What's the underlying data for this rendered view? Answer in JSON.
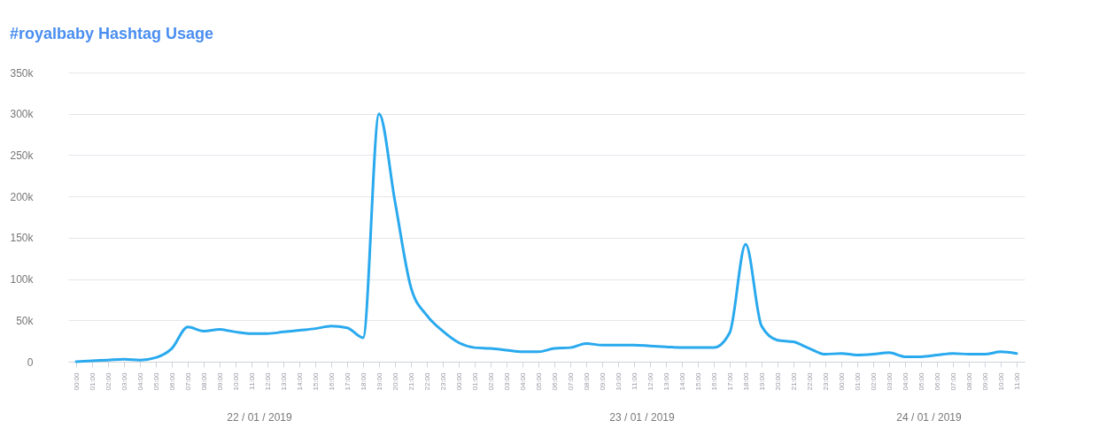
{
  "chart_data": {
    "type": "line",
    "title": "#royalbaby Hashtag Usage",
    "x": [
      "2019-01-22T00:00",
      "2019-01-22T01:00",
      "2019-01-22T02:00",
      "2019-01-22T03:00",
      "2019-01-22T04:00",
      "2019-01-22T05:00",
      "2019-01-22T06:00",
      "2019-01-22T07:00",
      "2019-01-22T08:00",
      "2019-01-22T09:00",
      "2019-01-22T10:00",
      "2019-01-22T11:00",
      "2019-01-22T12:00",
      "2019-01-22T13:00",
      "2019-01-22T14:00",
      "2019-01-22T15:00",
      "2019-01-22T16:00",
      "2019-01-22T17:00",
      "2019-01-22T18:00",
      "2019-01-22T19:00",
      "2019-01-22T20:00",
      "2019-01-22T21:00",
      "2019-01-22T22:00",
      "2019-01-22T23:00",
      "2019-01-23T00:00",
      "2019-01-23T01:00",
      "2019-01-23T02:00",
      "2019-01-23T03:00",
      "2019-01-23T04:00",
      "2019-01-23T05:00",
      "2019-01-23T06:00",
      "2019-01-23T07:00",
      "2019-01-23T08:00",
      "2019-01-23T09:00",
      "2019-01-23T10:00",
      "2019-01-23T11:00",
      "2019-01-23T12:00",
      "2019-01-23T13:00",
      "2019-01-23T14:00",
      "2019-01-23T15:00",
      "2019-01-23T16:00",
      "2019-01-23T17:00",
      "2019-01-23T18:00",
      "2019-01-23T19:00",
      "2019-01-23T20:00",
      "2019-01-23T21:00",
      "2019-01-23T22:00",
      "2019-01-23T23:00",
      "2019-01-24T00:00",
      "2019-01-24T01:00",
      "2019-01-24T02:00",
      "2019-01-24T03:00",
      "2019-01-24T04:00",
      "2019-01-24T05:00",
      "2019-01-24T06:00",
      "2019-01-24T07:00",
      "2019-01-24T08:00",
      "2019-01-24T09:00",
      "2019-01-24T10:00",
      "2019-01-24T11:00"
    ],
    "series": [
      {
        "color": "#29a9ee",
        "values": [
          0,
          1000,
          2000,
          3000,
          2000,
          5000,
          16000,
          42000,
          37000,
          39000,
          36000,
          34000,
          34000,
          36000,
          38000,
          40000,
          43000,
          41000,
          29000,
          300000,
          194000,
          90000,
          56000,
          37000,
          23000,
          17000,
          16000,
          14000,
          12000,
          12000,
          16000,
          17000,
          22000,
          20000,
          20000,
          20000,
          19000,
          18000,
          17000,
          17000,
          17000,
          35000,
          142000,
          43000,
          26000,
          24000,
          16000,
          9000,
          10000,
          8000,
          9000,
          11000,
          6000,
          6000,
          8000,
          10000,
          9000,
          9000,
          12000,
          10000
        ]
      }
    ],
    "xlim": [
      "2019-01-21T23:30",
      "2019-01-24T11:30"
    ],
    "xticks": [
      {
        "value": "2019-01-22T00:00",
        "label": "00:00"
      },
      {
        "value": "2019-01-22T01:00",
        "label": "01:00"
      },
      {
        "value": "2019-01-22T02:00",
        "label": "02:00"
      },
      {
        "value": "2019-01-22T03:00",
        "label": "03:00"
      },
      {
        "value": "2019-01-22T04:00",
        "label": "04:00"
      },
      {
        "value": "2019-01-22T05:00",
        "label": "05:00"
      },
      {
        "value": "2019-01-22T06:00",
        "label": "06:00"
      },
      {
        "value": "2019-01-22T07:00",
        "label": "07:00"
      },
      {
        "value": "2019-01-22T08:00",
        "label": "08:00"
      },
      {
        "value": "2019-01-22T09:00",
        "label": "09:00"
      },
      {
        "value": "2019-01-22T10:00",
        "label": "10:00"
      },
      {
        "value": "2019-01-22T11:00",
        "label": "11:00"
      },
      {
        "value": "2019-01-22T12:00",
        "label": "12:00"
      },
      {
        "value": "2019-01-22T13:00",
        "label": "13:00"
      },
      {
        "value": "2019-01-22T14:00",
        "label": "14:00"
      },
      {
        "value": "2019-01-22T15:00",
        "label": "15:00"
      },
      {
        "value": "2019-01-22T16:00",
        "label": "16:00"
      },
      {
        "value": "2019-01-22T17:00",
        "label": "17:00"
      },
      {
        "value": "2019-01-22T18:00",
        "label": "18:00"
      },
      {
        "value": "2019-01-22T19:00",
        "label": "19:00"
      },
      {
        "value": "2019-01-22T20:00",
        "label": "20:00"
      },
      {
        "value": "2019-01-22T21:00",
        "label": "21:00"
      },
      {
        "value": "2019-01-22T22:00",
        "label": "22:00"
      },
      {
        "value": "2019-01-22T23:00",
        "label": "23:00"
      },
      {
        "value": "2019-01-23T00:00",
        "label": "00:00"
      },
      {
        "value": "2019-01-23T01:00",
        "label": "01:00"
      },
      {
        "value": "2019-01-23T02:00",
        "label": "02:00"
      },
      {
        "value": "2019-01-23T03:00",
        "label": "03:00"
      },
      {
        "value": "2019-01-23T04:00",
        "label": "04:00"
      },
      {
        "value": "2019-01-23T05:00",
        "label": "05:00"
      },
      {
        "value": "2019-01-23T06:00",
        "label": "06:00"
      },
      {
        "value": "2019-01-23T07:00",
        "label": "07:00"
      },
      {
        "value": "2019-01-23T08:00",
        "label": "08:00"
      },
      {
        "value": "2019-01-23T09:00",
        "label": "09:00"
      },
      {
        "value": "2019-01-23T10:00",
        "label": "10:00"
      },
      {
        "value": "2019-01-23T11:00",
        "label": "11:00"
      },
      {
        "value": "2019-01-23T12:00",
        "label": "12:00"
      },
      {
        "value": "2019-01-23T13:00",
        "label": "13:00"
      },
      {
        "value": "2019-01-23T14:00",
        "label": "14:00"
      },
      {
        "value": "2019-01-23T15:00",
        "label": "15:00"
      },
      {
        "value": "2019-01-23T16:00",
        "label": "16:00"
      },
      {
        "value": "2019-01-23T17:00",
        "label": "17:00"
      },
      {
        "value": "2019-01-23T18:00",
        "label": "18:00"
      },
      {
        "value": "2019-01-23T19:00",
        "label": "19:00"
      },
      {
        "value": "2019-01-23T20:00",
        "label": "20:00"
      },
      {
        "value": "2019-01-23T21:00",
        "label": "21:00"
      },
      {
        "value": "2019-01-23T22:00",
        "label": "22:00"
      },
      {
        "value": "2019-01-23T23:00",
        "label": "23:00"
      },
      {
        "value": "2019-01-24T00:00",
        "label": "00:00"
      },
      {
        "value": "2019-01-24T01:00",
        "label": "01:00"
      },
      {
        "value": "2019-01-24T02:00",
        "label": "02:00"
      },
      {
        "value": "2019-01-24T03:00",
        "label": "03:00"
      },
      {
        "value": "2019-01-24T04:00",
        "label": "04:00"
      },
      {
        "value": "2019-01-24T05:00",
        "label": "05:00"
      },
      {
        "value": "2019-01-24T06:00",
        "label": "06:00"
      },
      {
        "value": "2019-01-24T07:00",
        "label": "07:00"
      },
      {
        "value": "2019-01-24T08:00",
        "label": "08:00"
      },
      {
        "value": "2019-01-24T09:00",
        "label": "09:00"
      },
      {
        "value": "2019-01-24T10:00",
        "label": "10:00"
      },
      {
        "value": "2019-01-24T11:00",
        "label": "11:00"
      }
    ],
    "ylim": [
      0,
      350000
    ],
    "yticks": [
      {
        "value": 0,
        "label": "0"
      },
      {
        "value": 50000,
        "label": "50k"
      },
      {
        "value": 100000,
        "label": "100k"
      },
      {
        "value": 150000,
        "label": "150k"
      },
      {
        "value": 200000,
        "label": "200k"
      },
      {
        "value": 250000,
        "label": "250k"
      },
      {
        "value": 300000,
        "label": "300k"
      },
      {
        "value": 350000,
        "label": "350k"
      }
    ],
    "grid": "y",
    "marker": "none",
    "line_style": "solid",
    "annotations": [
      "22 / 01 / 2019",
      "23 / 01 / 2019",
      "24 / 01 / 2019"
    ]
  }
}
